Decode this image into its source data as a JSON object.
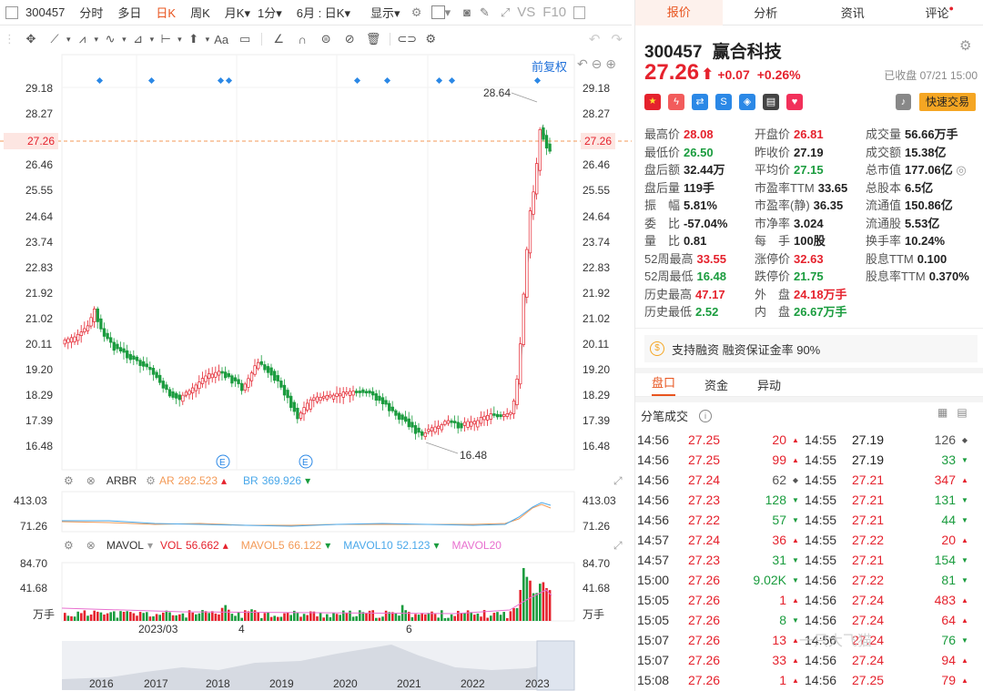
{
  "toolbar": {
    "code": "300457",
    "items": [
      "分时",
      "多日",
      "日K",
      "周K",
      "月K",
      "1分",
      "6月 : 日K",
      "显示"
    ],
    "active_index": 2,
    "right_items": [
      "VS",
      "F10"
    ]
  },
  "chart": {
    "restore_label": "前复权",
    "y_ticks": [
      "29.18",
      "28.27",
      "27.26",
      "26.46",
      "25.55",
      "24.64",
      "23.74",
      "22.83",
      "21.92",
      "21.02",
      "20.11",
      "19.20",
      "18.29",
      "17.39",
      "16.48"
    ],
    "current_price_tag": "27.26",
    "high_label": "28.64",
    "low_label": "16.48",
    "event_marker": "E",
    "x_months": [
      "2023/03",
      "4",
      "6"
    ],
    "nav_years": [
      "2016",
      "2017",
      "2018",
      "2019",
      "2020",
      "2021",
      "2022",
      "2023"
    ]
  },
  "arbr": {
    "name": "ARBR",
    "ar_label": "AR",
    "ar_value": "282.523",
    "br_label": "BR",
    "br_value": "369.926",
    "y_ticks": [
      "413.03",
      "71.26"
    ]
  },
  "mavol": {
    "name": "MAVOL",
    "vol_label": "VOL",
    "vol_value": "56.662",
    "ma5_label": "MAVOL5",
    "ma5_value": "66.122",
    "ma10_label": "MAVOL10",
    "ma10_value": "52.123",
    "ma20_label": "MAVOL20",
    "y_ticks": [
      "84.70",
      "41.68",
      "万手"
    ]
  },
  "panel": {
    "tabs": [
      "报价",
      "分析",
      "资讯",
      "评论"
    ],
    "code": "300457",
    "name": "赢合科技",
    "price": "27.26",
    "change": "+0.07",
    "change_pct": "+0.26%",
    "status": "已收盘 07/21 15:00",
    "quick_trade": "快速交易",
    "stats": [
      [
        "最高价",
        "28.08",
        "red"
      ],
      [
        "开盘价",
        "26.81",
        "red"
      ],
      [
        "成交量",
        "56.66万手",
        "blk"
      ],
      [
        "最低价",
        "26.50",
        "green"
      ],
      [
        "昨收价",
        "27.19",
        "blk"
      ],
      [
        "成交额",
        "15.38亿",
        "blk"
      ],
      [
        "盘后额",
        "32.44万",
        "blk"
      ],
      [
        "平均价",
        "27.15",
        "green"
      ],
      [
        "总市值",
        "177.06亿",
        "blk"
      ],
      [
        "盘后量",
        "119手",
        "blk"
      ],
      [
        "市盈率TTM",
        "33.65",
        "blk"
      ],
      [
        "总股本",
        "6.5亿",
        "blk"
      ],
      [
        "振　幅",
        "5.81%",
        "blk"
      ],
      [
        "市盈率(静)",
        "36.35",
        "blk"
      ],
      [
        "流通值",
        "150.86亿",
        "blk"
      ],
      [
        "委　比",
        "-57.04%",
        "blk"
      ],
      [
        "市净率",
        "3.024",
        "blk"
      ],
      [
        "流通股",
        "5.53亿",
        "blk"
      ],
      [
        "量　比",
        "0.81",
        "blk"
      ],
      [
        "每　手",
        "100股",
        "blk"
      ],
      [
        "换手率",
        "10.24%",
        "blk"
      ],
      [
        "52周最高",
        "33.55",
        "red"
      ],
      [
        "涨停价",
        "32.63",
        "red"
      ],
      [
        "股息TTM",
        "0.100",
        "blk"
      ],
      [
        "52周最低",
        "16.48",
        "green"
      ],
      [
        "跌停价",
        "21.75",
        "green"
      ],
      [
        "股息率TTM",
        "0.370%",
        "blk"
      ],
      [
        "历史最高",
        "47.17",
        "red"
      ],
      [
        "外　盘",
        "24.18万手",
        "red"
      ],
      [
        "",
        "",
        " "
      ],
      [
        "历史最低",
        "2.52",
        "green"
      ],
      [
        "内　盘",
        "26.67万手",
        "green"
      ],
      [
        "",
        "",
        " "
      ]
    ],
    "margin_note": "支持融资 融资保证金率 90%",
    "sub_tabs": [
      "盘口",
      "资金",
      "异动"
    ],
    "ticks_title": "分笔成交",
    "ticks_left": [
      [
        "14:56",
        "27.25",
        "20",
        "up"
      ],
      [
        "14:56",
        "27.25",
        "99",
        "up"
      ],
      [
        "14:56",
        "27.24",
        "62",
        "flat"
      ],
      [
        "14:56",
        "27.23",
        "128",
        "down"
      ],
      [
        "14:56",
        "27.22",
        "57",
        "down"
      ],
      [
        "14:57",
        "27.24",
        "36",
        "up"
      ],
      [
        "14:57",
        "27.23",
        "31",
        "down"
      ],
      [
        "15:00",
        "27.26",
        "9.02K",
        "down"
      ],
      [
        "15:05",
        "27.26",
        "1",
        "up"
      ],
      [
        "15:05",
        "27.26",
        "8",
        "down"
      ],
      [
        "15:07",
        "27.26",
        "13",
        "up"
      ],
      [
        "15:07",
        "27.26",
        "33",
        "up"
      ],
      [
        "15:08",
        "27.26",
        "1",
        "up"
      ]
    ],
    "ticks_right": [
      [
        "14:55",
        "27.19",
        "126",
        "flat"
      ],
      [
        "14:55",
        "27.19",
        "33",
        "down"
      ],
      [
        "14:55",
        "27.21",
        "347",
        "up"
      ],
      [
        "14:55",
        "27.21",
        "131",
        "down"
      ],
      [
        "14:55",
        "27.21",
        "44",
        "down"
      ],
      [
        "14:55",
        "27.22",
        "20",
        "up"
      ],
      [
        "14:55",
        "27.21",
        "154",
        "down"
      ],
      [
        "14:56",
        "27.22",
        "81",
        "down"
      ],
      [
        "14:56",
        "27.24",
        "483",
        "up"
      ],
      [
        "14:56",
        "27.24",
        "64",
        "up"
      ],
      [
        "14:56",
        "27.24",
        "76",
        "down"
      ],
      [
        "14:56",
        "27.24",
        "94",
        "up"
      ],
      [
        "14:56",
        "27.25",
        "79",
        "up"
      ]
    ],
    "watermark": "一只大飞猫"
  },
  "colors": {
    "up": "#e5222d",
    "down": "#1a9c3e",
    "accent": "#e8541e",
    "link": "#1e6fd9"
  }
}
